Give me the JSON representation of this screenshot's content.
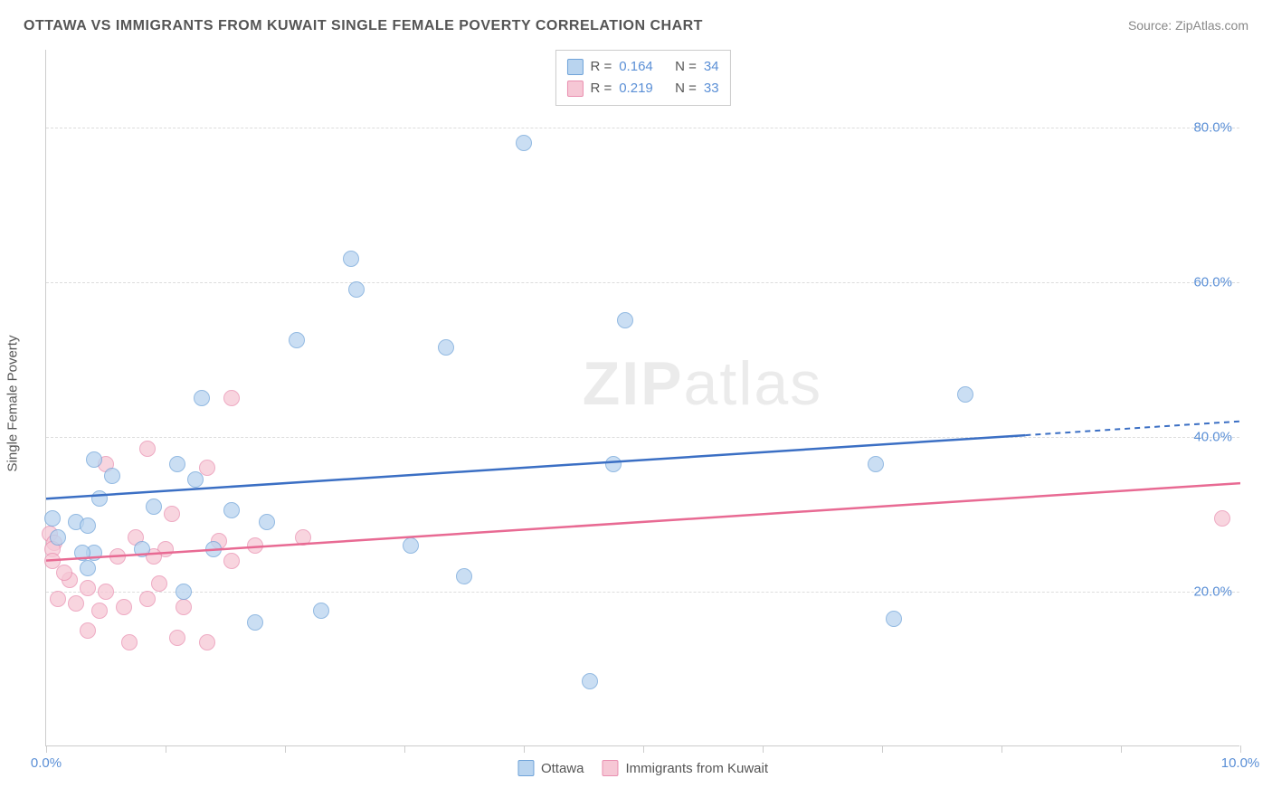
{
  "title": "OTTAWA VS IMMIGRANTS FROM KUWAIT SINGLE FEMALE POVERTY CORRELATION CHART",
  "source": "Source: ZipAtlas.com",
  "y_axis_title": "Single Female Poverty",
  "watermark_bold": "ZIP",
  "watermark_light": "atlas",
  "chart": {
    "type": "scatter",
    "xlim": [
      0,
      10
    ],
    "ylim": [
      0,
      90
    ],
    "x_ticks": [
      0,
      1,
      2,
      3,
      4,
      5,
      6,
      7,
      8,
      9,
      10
    ],
    "x_labels_shown": {
      "0": "0.0%",
      "10": "10.0%"
    },
    "y_gridlines": [
      20,
      40,
      60,
      80
    ],
    "y_labels": {
      "20": "20.0%",
      "40": "40.0%",
      "60": "60.0%",
      "80": "80.0%"
    },
    "background_color": "#ffffff",
    "grid_color": "#dddddd",
    "axis_color": "#cccccc",
    "label_color": "#5a8fd6",
    "point_radius": 9,
    "series": [
      {
        "name": "Ottawa",
        "fill": "#b9d4ef",
        "stroke": "#6fa3d9",
        "trend_color": "#3b6fc4",
        "trend": {
          "y_at_x0": 32,
          "y_at_x10": 42
        },
        "r_label": "R =",
        "r_value": "0.164",
        "n_label": "N =",
        "n_value": "34",
        "points": [
          [
            4.0,
            78
          ],
          [
            2.55,
            63
          ],
          [
            2.6,
            59
          ],
          [
            3.35,
            51.5
          ],
          [
            2.1,
            52.5
          ],
          [
            4.85,
            55
          ],
          [
            7.7,
            45.5
          ],
          [
            1.3,
            45
          ],
          [
            6.95,
            36.5
          ],
          [
            0.4,
            37
          ],
          [
            4.75,
            36.5
          ],
          [
            1.1,
            36.5
          ],
          [
            0.55,
            35
          ],
          [
            1.25,
            34.5
          ],
          [
            3.05,
            26
          ],
          [
            0.45,
            32
          ],
          [
            0.9,
            31
          ],
          [
            1.55,
            30.5
          ],
          [
            0.25,
            29
          ],
          [
            0.05,
            29.5
          ],
          [
            0.35,
            28.5
          ],
          [
            1.85,
            29
          ],
          [
            0.4,
            25
          ],
          [
            0.8,
            25.5
          ],
          [
            1.4,
            25.5
          ],
          [
            0.3,
            25
          ],
          [
            0.35,
            23
          ],
          [
            1.15,
            20
          ],
          [
            1.75,
            16
          ],
          [
            2.3,
            17.5
          ],
          [
            7.1,
            16.5
          ],
          [
            4.55,
            8.4
          ],
          [
            0.1,
            27
          ],
          [
            3.5,
            22
          ]
        ]
      },
      {
        "name": "Immigrants from Kuwait",
        "fill": "#f6c7d5",
        "stroke": "#e98fb0",
        "trend_color": "#e86a93",
        "trend": {
          "y_at_x0": 24,
          "y_at_x10": 34
        },
        "r_label": "R =",
        "r_value": "0.219",
        "n_label": "N =",
        "n_value": "33",
        "points": [
          [
            1.55,
            45
          ],
          [
            0.85,
            38.5
          ],
          [
            0.5,
            36.5
          ],
          [
            1.35,
            36
          ],
          [
            0.03,
            27.5
          ],
          [
            0.07,
            26.3
          ],
          [
            9.85,
            29.5
          ],
          [
            1.05,
            30
          ],
          [
            0.75,
            27
          ],
          [
            1.0,
            25.5
          ],
          [
            0.05,
            25.5
          ],
          [
            0.6,
            24.5
          ],
          [
            0.9,
            24.5
          ],
          [
            1.45,
            26.5
          ],
          [
            1.75,
            26
          ],
          [
            2.15,
            27
          ],
          [
            0.2,
            21.5
          ],
          [
            0.35,
            20.5
          ],
          [
            0.5,
            20
          ],
          [
            0.1,
            19
          ],
          [
            0.25,
            18.5
          ],
          [
            0.65,
            18
          ],
          [
            0.85,
            19
          ],
          [
            0.45,
            17.5
          ],
          [
            0.15,
            22.5
          ],
          [
            0.7,
            13.5
          ],
          [
            1.1,
            14
          ],
          [
            1.35,
            13.5
          ],
          [
            0.35,
            15
          ],
          [
            0.05,
            24
          ],
          [
            0.95,
            21
          ],
          [
            1.55,
            24
          ],
          [
            1.15,
            18
          ]
        ]
      }
    ]
  },
  "legend_bottom": [
    {
      "label": "Ottawa",
      "fill": "#b9d4ef",
      "stroke": "#6fa3d9"
    },
    {
      "label": "Immigrants from Kuwait",
      "fill": "#f6c7d5",
      "stroke": "#e98fb0"
    }
  ]
}
